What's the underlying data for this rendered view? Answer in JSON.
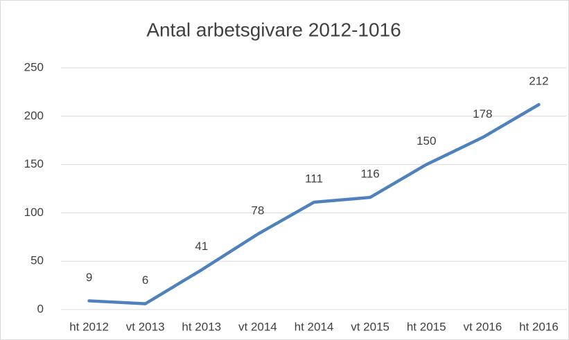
{
  "chart_data": {
    "type": "line",
    "title": "Antal arbetsgivare 2012-1016",
    "categories": [
      "ht 2012",
      "vt 2013",
      "ht 2013",
      "vt 2014",
      "ht 2014",
      "vt 2015",
      "ht 2015",
      "vt 2016",
      "ht 2016"
    ],
    "values": [
      9,
      6,
      41,
      78,
      111,
      116,
      150,
      178,
      212
    ],
    "color": "#4f81bd",
    "ylim": [
      0,
      250
    ],
    "yticks": [
      0,
      50,
      100,
      150,
      200,
      250
    ],
    "grid": true
  }
}
